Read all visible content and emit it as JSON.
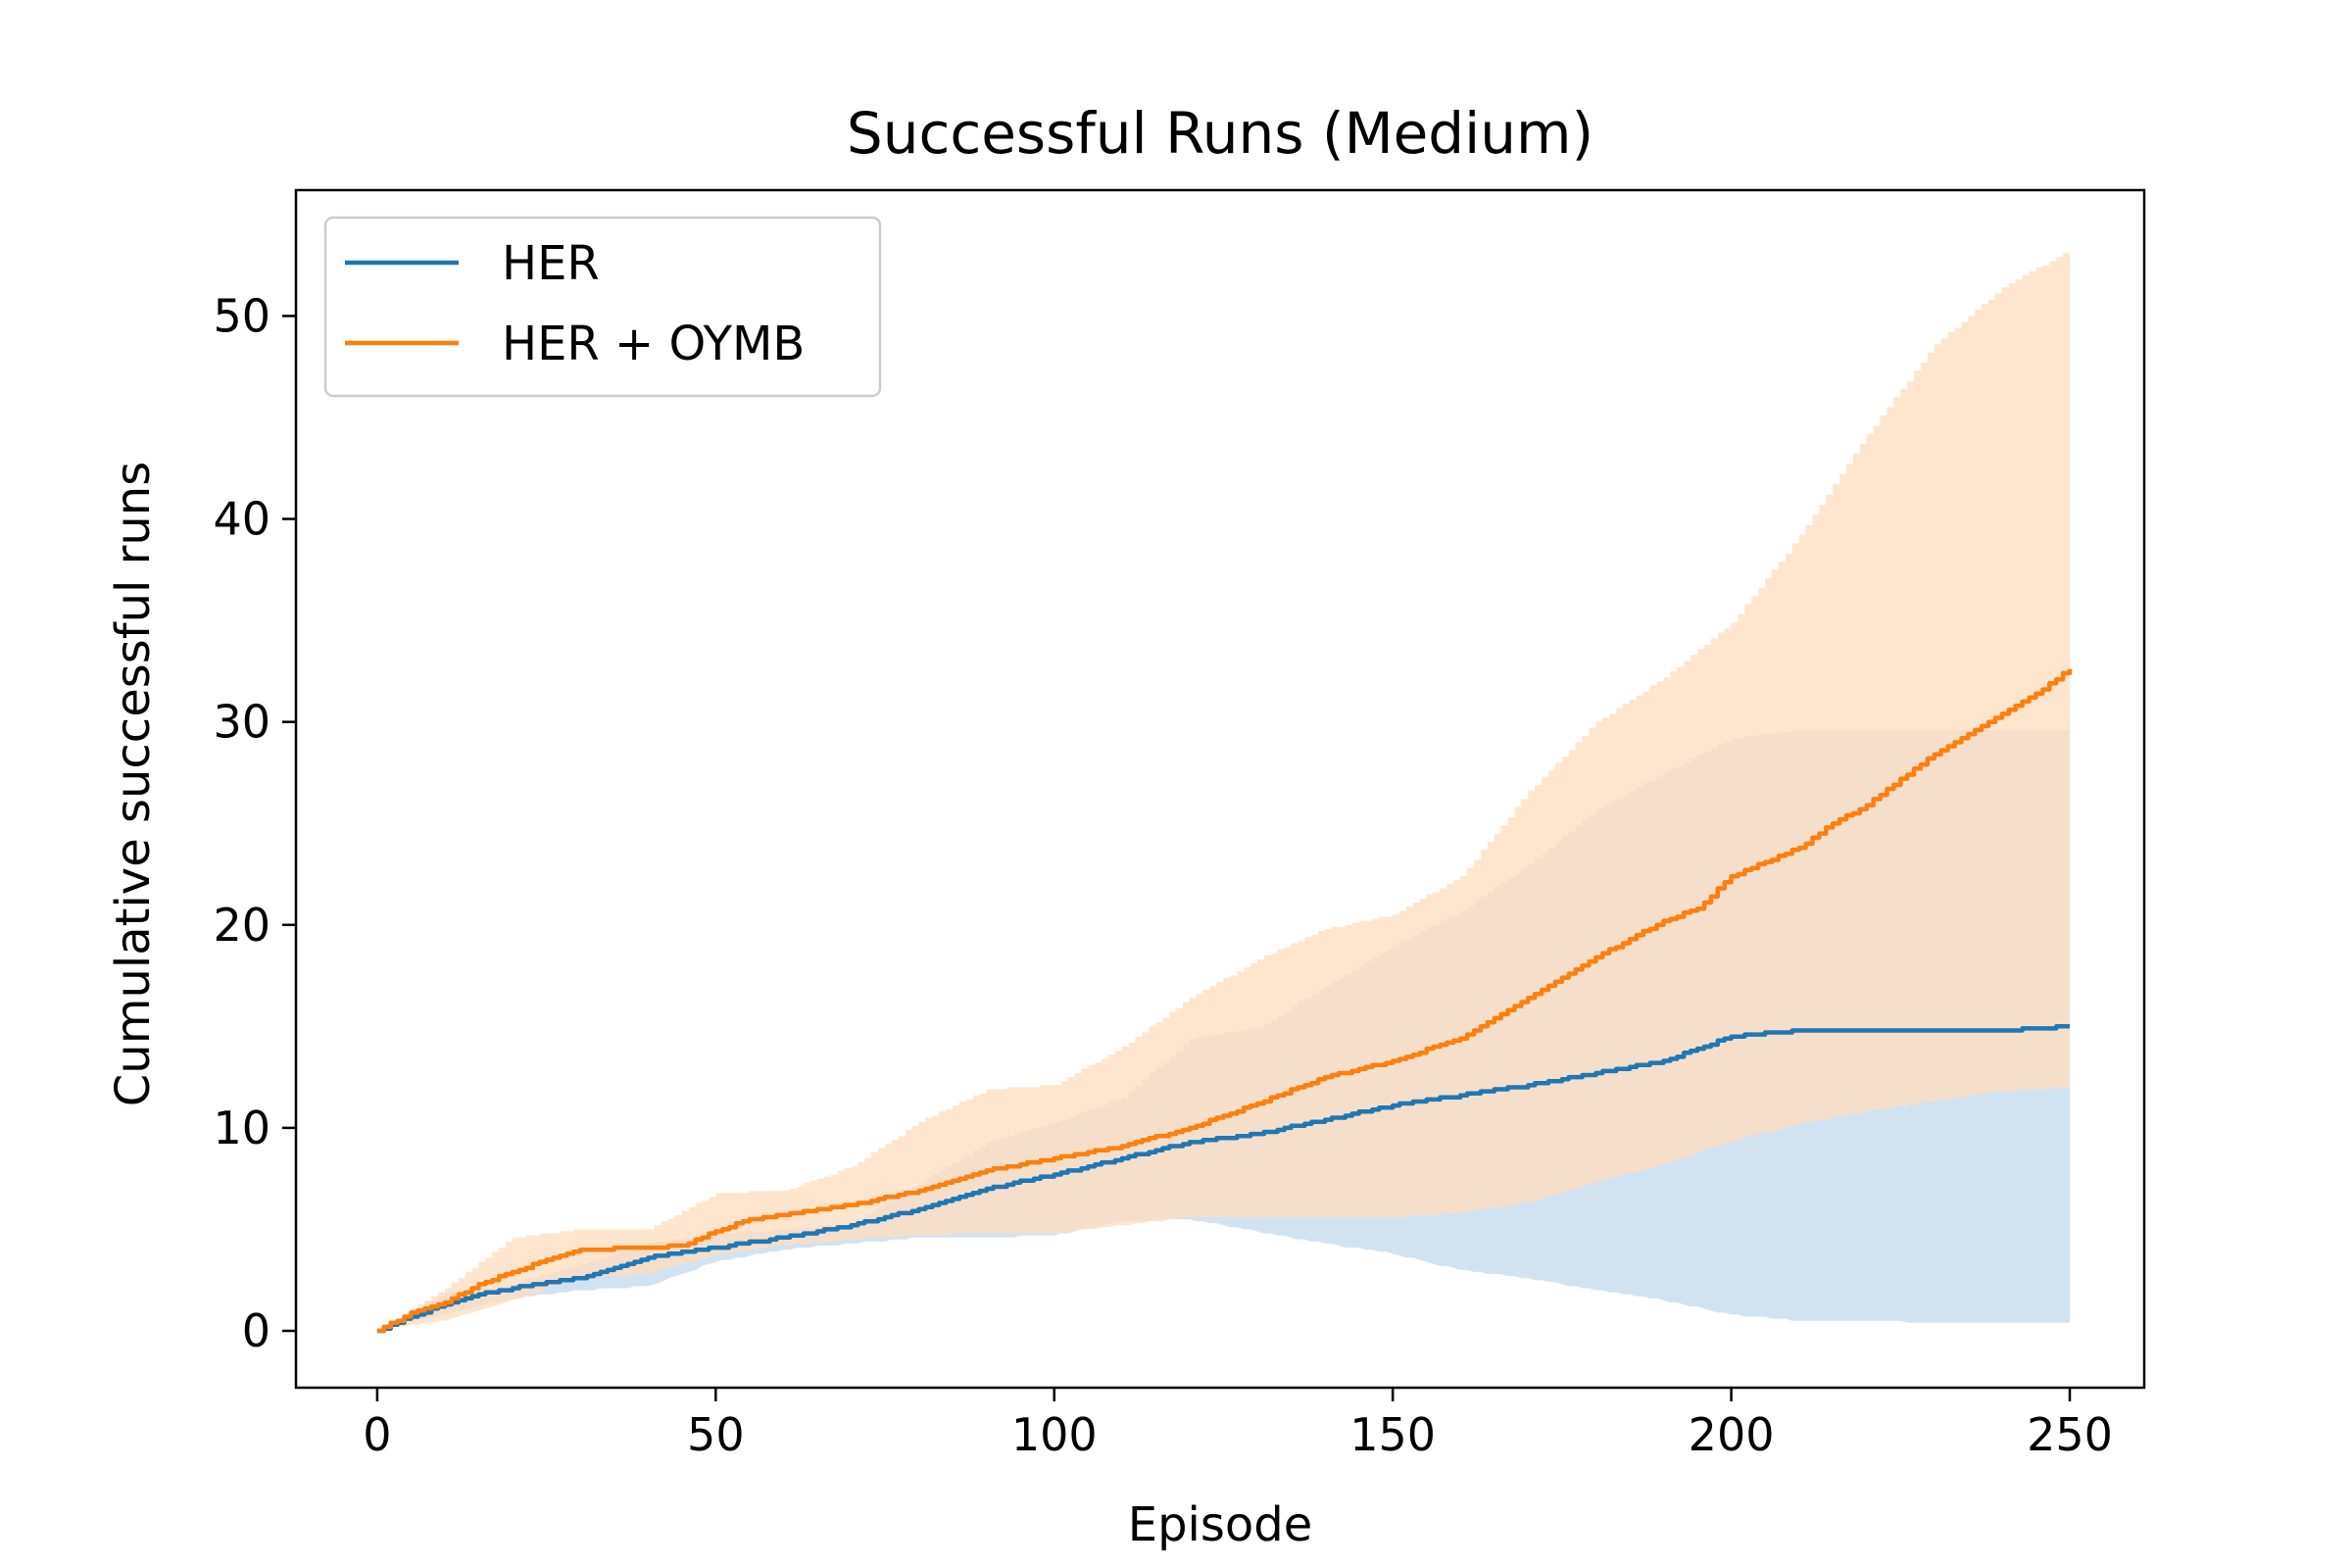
{
  "chart_data": {
    "type": "line",
    "title": "Successful Runs (Medium)",
    "xlabel": "Episode",
    "ylabel": "Cumulative successful runs",
    "xlim": [
      -12,
      261
    ],
    "ylim": [
      -2.8,
      56.2
    ],
    "xticks": [
      0,
      50,
      100,
      150,
      200,
      250
    ],
    "yticks": [
      0,
      10,
      20,
      30,
      40,
      50
    ],
    "grid": false,
    "legend": {
      "placement": "top-left"
    },
    "series": [
      {
        "name": "HER",
        "color": "#1f77b4",
        "band_color": "#c5dbee",
        "mean": [
          [
            0,
            0
          ],
          [
            5,
            0.7
          ],
          [
            10,
            1.3
          ],
          [
            15,
            1.8
          ],
          [
            20,
            2.1
          ],
          [
            30,
            2.6
          ],
          [
            40,
            3.6
          ],
          [
            50,
            4.1
          ],
          [
            60,
            4.6
          ],
          [
            70,
            5.2
          ],
          [
            80,
            6.0
          ],
          [
            90,
            7.0
          ],
          [
            100,
            7.7
          ],
          [
            110,
            8.5
          ],
          [
            120,
            9.3
          ],
          [
            130,
            9.7
          ],
          [
            140,
            10.4
          ],
          [
            150,
            11.1
          ],
          [
            160,
            11.6
          ],
          [
            170,
            12.1
          ],
          [
            180,
            12.7
          ],
          [
            190,
            13.3
          ],
          [
            200,
            14.5
          ],
          [
            210,
            14.8
          ],
          [
            240,
            14.8
          ],
          [
            250,
            15.0
          ]
        ],
        "lower": [
          [
            0,
            0
          ],
          [
            10,
            0.8
          ],
          [
            20,
            1.6
          ],
          [
            30,
            2.0
          ],
          [
            40,
            2.2
          ],
          [
            50,
            3.4
          ],
          [
            60,
            4.0
          ],
          [
            70,
            4.3
          ],
          [
            80,
            4.6
          ],
          [
            90,
            4.6
          ],
          [
            100,
            4.7
          ],
          [
            110,
            5.4
          ],
          [
            120,
            5.5
          ],
          [
            130,
            4.9
          ],
          [
            140,
            4.3
          ],
          [
            150,
            3.8
          ],
          [
            160,
            3.0
          ],
          [
            170,
            2.6
          ],
          [
            180,
            2.0
          ],
          [
            190,
            1.5
          ],
          [
            200,
            0.8
          ],
          [
            210,
            0.5
          ],
          [
            240,
            0.4
          ],
          [
            250,
            0.4
          ]
        ],
        "upper": [
          [
            0,
            0
          ],
          [
            10,
            1.9
          ],
          [
            20,
            2.3
          ],
          [
            30,
            3.3
          ],
          [
            40,
            4.3
          ],
          [
            50,
            4.8
          ],
          [
            60,
            5.0
          ],
          [
            70,
            5.3
          ],
          [
            80,
            7.3
          ],
          [
            90,
            9.3
          ],
          [
            100,
            10.3
          ],
          [
            110,
            11.5
          ],
          [
            120,
            14.4
          ],
          [
            130,
            14.9
          ],
          [
            140,
            17.0
          ],
          [
            150,
            19.0
          ],
          [
            160,
            20.7
          ],
          [
            170,
            23.0
          ],
          [
            180,
            25.7
          ],
          [
            190,
            27.5
          ],
          [
            200,
            29.2
          ],
          [
            210,
            29.6
          ],
          [
            240,
            29.6
          ],
          [
            250,
            29.6
          ]
        ]
      },
      {
        "name": "HER + OYMB",
        "color": "#ff7f0e",
        "band_color": "#fedfc2",
        "mean": [
          [
            0,
            0
          ],
          [
            5,
            0.9
          ],
          [
            10,
            1.4
          ],
          [
            15,
            2.3
          ],
          [
            20,
            2.9
          ],
          [
            25,
            3.5
          ],
          [
            30,
            4.0
          ],
          [
            40,
            4.1
          ],
          [
            45,
            4.2
          ],
          [
            50,
            4.9
          ],
          [
            55,
            5.5
          ],
          [
            60,
            5.7
          ],
          [
            70,
            6.2
          ],
          [
            80,
            6.9
          ],
          [
            90,
            7.9
          ],
          [
            100,
            8.5
          ],
          [
            110,
            9.1
          ],
          [
            120,
            10.0
          ],
          [
            125,
            10.6
          ],
          [
            130,
            11.2
          ],
          [
            140,
            12.5
          ],
          [
            150,
            13.3
          ],
          [
            160,
            14.4
          ],
          [
            170,
            16.4
          ],
          [
            180,
            18.4
          ],
          [
            190,
            20.2
          ],
          [
            195,
            20.8
          ],
          [
            200,
            22.4
          ],
          [
            210,
            23.8
          ],
          [
            215,
            25.0
          ],
          [
            220,
            25.9
          ],
          [
            230,
            28.4
          ],
          [
            240,
            30.4
          ],
          [
            245,
            31.4
          ],
          [
            250,
            32.6
          ]
        ],
        "lower": [
          [
            0,
            0
          ],
          [
            10,
            0.5
          ],
          [
            20,
            1.5
          ],
          [
            30,
            2.6
          ],
          [
            40,
            2.8
          ],
          [
            50,
            3.7
          ],
          [
            60,
            4.2
          ],
          [
            70,
            4.5
          ],
          [
            80,
            4.7
          ],
          [
            90,
            4.8
          ],
          [
            100,
            4.8
          ],
          [
            110,
            5.2
          ],
          [
            120,
            5.6
          ],
          [
            130,
            5.6
          ],
          [
            140,
            5.6
          ],
          [
            150,
            5.6
          ],
          [
            160,
            5.8
          ],
          [
            170,
            6.3
          ],
          [
            180,
            7.3
          ],
          [
            190,
            8.2
          ],
          [
            200,
            9.3
          ],
          [
            210,
            10.2
          ],
          [
            220,
            10.8
          ],
          [
            230,
            11.3
          ],
          [
            240,
            11.8
          ],
          [
            250,
            12.0
          ]
        ],
        "upper": [
          [
            0,
            0
          ],
          [
            10,
            2.1
          ],
          [
            20,
            4.6
          ],
          [
            30,
            5.0
          ],
          [
            40,
            5.0
          ],
          [
            50,
            6.8
          ],
          [
            60,
            6.9
          ],
          [
            70,
            8.1
          ],
          [
            80,
            10.3
          ],
          [
            90,
            11.9
          ],
          [
            100,
            12.1
          ],
          [
            110,
            14.0
          ],
          [
            120,
            16.4
          ],
          [
            130,
            18.3
          ],
          [
            140,
            19.8
          ],
          [
            150,
            20.5
          ],
          [
            160,
            22.4
          ],
          [
            170,
            26.6
          ],
          [
            180,
            30.0
          ],
          [
            190,
            32.2
          ],
          [
            200,
            34.9
          ],
          [
            210,
            39.2
          ],
          [
            220,
            44.2
          ],
          [
            230,
            48.6
          ],
          [
            240,
            51.4
          ],
          [
            250,
            53.3
          ]
        ]
      }
    ]
  }
}
